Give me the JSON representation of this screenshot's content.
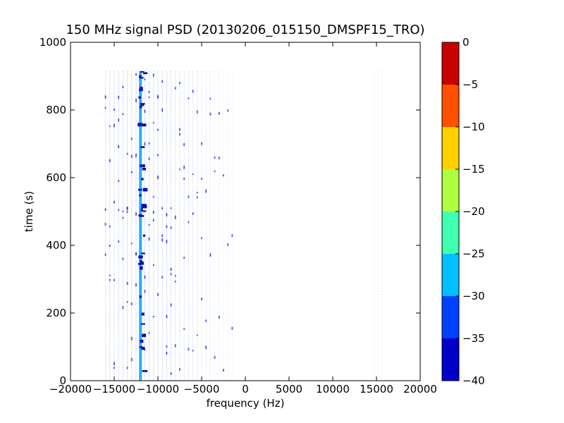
{
  "chart_data": {
    "type": "heatmap",
    "title": "150 MHz signal PSD (20130206_015150_DMSPF15_TRO)",
    "xlabel": "frequency (Hz)",
    "ylabel": "time (s)",
    "xlim": [
      -20000,
      20000
    ],
    "ylim": [
      0,
      1000
    ],
    "xticks": [
      -20000,
      -15000,
      -10000,
      -5000,
      0,
      5000,
      10000,
      15000,
      20000
    ],
    "xtick_labels": [
      "−20000",
      "−15000",
      "−10000",
      "−5000",
      "0",
      "5000",
      "10000",
      "15000",
      "20000"
    ],
    "yticks": [
      0,
      200,
      400,
      600,
      800,
      1000
    ],
    "ytick_labels": [
      "0",
      "200",
      "400",
      "600",
      "800",
      "1000"
    ],
    "time_extent": [
      0,
      915
    ],
    "colorbar": {
      "levels": [
        -40,
        -35,
        -30,
        -25,
        -20,
        -15,
        -10,
        -5,
        0
      ],
      "tick_labels": [
        "−40",
        "−35",
        "−30",
        "−25",
        "−20",
        "−15",
        "−10",
        "−5",
        "0"
      ],
      "colors": [
        "#0000c8",
        "#0040ff",
        "#00c0ff",
        "#40ffb0",
        "#b0ff40",
        "#ffd000",
        "#ff5000",
        "#c80000"
      ]
    },
    "spectral_lines": {
      "comb_hz": [
        -16000,
        -15500,
        -15000,
        -14500,
        -14000,
        -13500,
        -13000,
        -12500,
        -11500,
        -11000,
        -10500,
        -10000,
        -9500,
        -9000,
        -8500,
        -8000,
        -7500,
        -7000,
        -6500,
        -6000,
        -5500,
        -5000,
        -4500,
        -4000,
        -3500,
        -3000,
        -2500,
        -2000,
        -1500
      ],
      "strong_line_hz": -12000,
      "right_lines_hz": [
        14700,
        15200,
        15600
      ]
    }
  }
}
